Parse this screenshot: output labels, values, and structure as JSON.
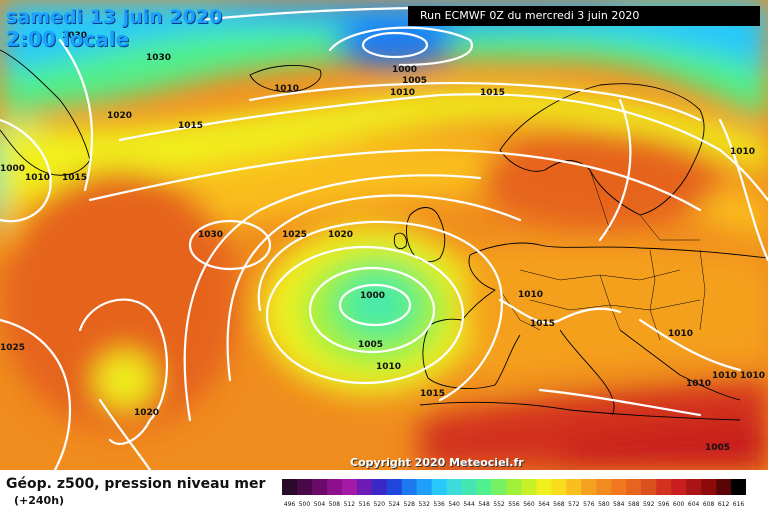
{
  "header": {
    "date_line": "samedi 13 juin 2020",
    "time_line": "2:00 locale",
    "run_info": "Run ECMWF 0Z du mercredi 3 juin 2020"
  },
  "footer": {
    "title": "Géop. z500, pression niveau mer",
    "subtitle": "(+240h)",
    "copyright": "Copyright 2020 Meteociel.fr"
  },
  "isobar_labels": [
    {
      "text": "1030"
    },
    {
      "text": "1030"
    },
    {
      "text": "1000"
    },
    {
      "text": "1005"
    },
    {
      "text": "1010"
    },
    {
      "text": "1010"
    },
    {
      "text": "1015"
    },
    {
      "text": "1020"
    },
    {
      "text": "1015"
    },
    {
      "text": "1000"
    },
    {
      "text": "1010"
    },
    {
      "text": "1015"
    },
    {
      "text": "1010"
    },
    {
      "text": "1030"
    },
    {
      "text": "1025"
    },
    {
      "text": "1020"
    },
    {
      "text": "1000"
    },
    {
      "text": "1005"
    },
    {
      "text": "1010"
    },
    {
      "text": "1010"
    },
    {
      "text": "1015"
    },
    {
      "text": "1010"
    },
    {
      "text": "1015"
    },
    {
      "text": "1010"
    },
    {
      "text": "1010"
    },
    {
      "text": "1010"
    },
    {
      "text": "1025"
    },
    {
      "text": "1020"
    },
    {
      "text": "1005"
    }
  ],
  "colorbar": {
    "labels": [
      "496",
      "500",
      "504",
      "508",
      "512",
      "516",
      "520",
      "524",
      "528",
      "532",
      "536",
      "540",
      "544",
      "548",
      "552",
      "556",
      "560",
      "564",
      "568",
      "572",
      "576",
      "580",
      "584",
      "588",
      "592",
      "596",
      "600",
      "604",
      "608",
      "612",
      "616"
    ],
    "colors": [
      "#2a0a2a",
      "#4a0a4a",
      "#6a0a6a",
      "#8c0f8c",
      "#a51aa5",
      "#6e1ab4",
      "#3c28c8",
      "#1e46dc",
      "#1e78f0",
      "#1ea0fa",
      "#28c8fa",
      "#3cdcdc",
      "#46e6b4",
      "#50f08c",
      "#78f064",
      "#a0f03c",
      "#c8f028",
      "#f0f01e",
      "#fadc1e",
      "#fabe1e",
      "#f5a01e",
      "#f08c1e",
      "#f0781e",
      "#e6641e",
      "#dc501e",
      "#d2321e",
      "#c81e1e",
      "#aa1414",
      "#8c0a0a",
      "#5a0505",
      "#000000"
    ]
  },
  "colors": {
    "title_blue": "#1aa0ff",
    "isobar_white": "#ffffff"
  }
}
